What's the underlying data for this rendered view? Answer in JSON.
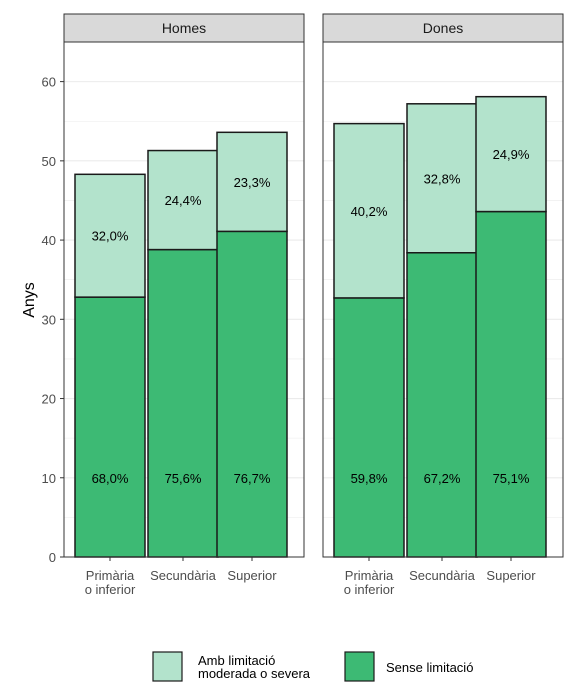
{
  "colors": {
    "sense_limitacio": "#3dba74",
    "amb_limitacio": "#b3e3cc",
    "outline": "#1a1a1a",
    "strip_fill": "#d9d9d9",
    "grid": "#ebebeb"
  },
  "chart_data": {
    "type": "bar",
    "stacked": true,
    "ylabel": "Anys",
    "ylim": [
      0,
      65
    ],
    "yticks": [
      0,
      10,
      20,
      30,
      40,
      50,
      60
    ],
    "grid": true,
    "legend_position": "bottom",
    "categories": [
      [
        "Primària",
        "o inferior"
      ],
      [
        "Secundària"
      ],
      [
        "Superior"
      ]
    ],
    "facets": [
      {
        "name": "Homes",
        "series": [
          {
            "name": "Sense limitació",
            "values": [
              32.8,
              38.8,
              41.1
            ],
            "labels": [
              "68,0%",
              "75,6%",
              "76,7%"
            ]
          },
          {
            "name": "Amb limitació moderada o severa",
            "values": [
              15.5,
              12.5,
              12.5
            ],
            "labels": [
              "32,0%",
              "24,4%",
              "23,3%"
            ]
          }
        ]
      },
      {
        "name": "Dones",
        "series": [
          {
            "name": "Sense limitació",
            "values": [
              32.7,
              38.4,
              43.6
            ],
            "labels": [
              "59,8%",
              "67,2%",
              "75,1%"
            ]
          },
          {
            "name": "Amb limitació moderada o severa",
            "values": [
              22.0,
              18.8,
              14.5
            ],
            "labels": [
              "40,2%",
              "32,8%",
              "24,9%"
            ]
          }
        ]
      }
    ],
    "legend": [
      {
        "series": "Amb limitació moderada o severa",
        "lines": [
          "Amb limitació",
          "moderada o severa"
        ]
      },
      {
        "series": "Sense limitació",
        "lines": [
          "Sense limitació"
        ]
      }
    ]
  }
}
